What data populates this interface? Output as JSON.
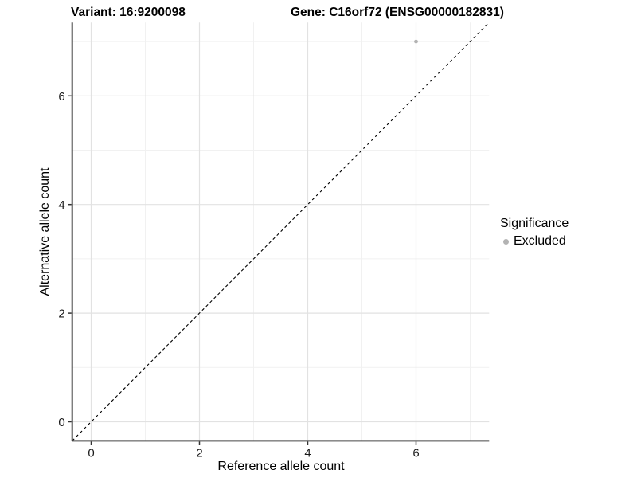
{
  "chart_data": {
    "type": "scatter",
    "title_left": "Variant: 16:9200098",
    "title_right": "Gene: C16orf72 (ENSG00000182831)",
    "xlabel": "Reference allele count",
    "ylabel": "Alternative allele count",
    "xlim": [
      -0.35,
      7.35
    ],
    "ylim": [
      -0.35,
      7.35
    ],
    "x_ticks": [
      0,
      2,
      4,
      6
    ],
    "y_ticks": [
      0,
      2,
      4,
      6
    ],
    "minor_grid": [
      1,
      3,
      5,
      7
    ],
    "grid": "on",
    "series": [
      {
        "name": "Excluded",
        "color": "#b3b3b3",
        "points": [
          {
            "x": 6,
            "y": 7
          }
        ]
      }
    ],
    "reference_line": {
      "kind": "identity y = x",
      "style": "dashed",
      "color": "#000000",
      "x1": -0.35,
      "y1": -0.35,
      "x2": 7.35,
      "y2": 7.35
    },
    "legend": {
      "title": "Significance",
      "position": "right",
      "items": [
        {
          "label": "Excluded",
          "color": "#b3b3b3"
        }
      ]
    },
    "colors": {
      "background": "#ffffff",
      "grid_major": "#e2e2e2",
      "grid_minor": "#f1f1f1",
      "axis_line": "#464646",
      "tick_mark": "#333333",
      "tick_text": "#1a1a1a"
    }
  }
}
